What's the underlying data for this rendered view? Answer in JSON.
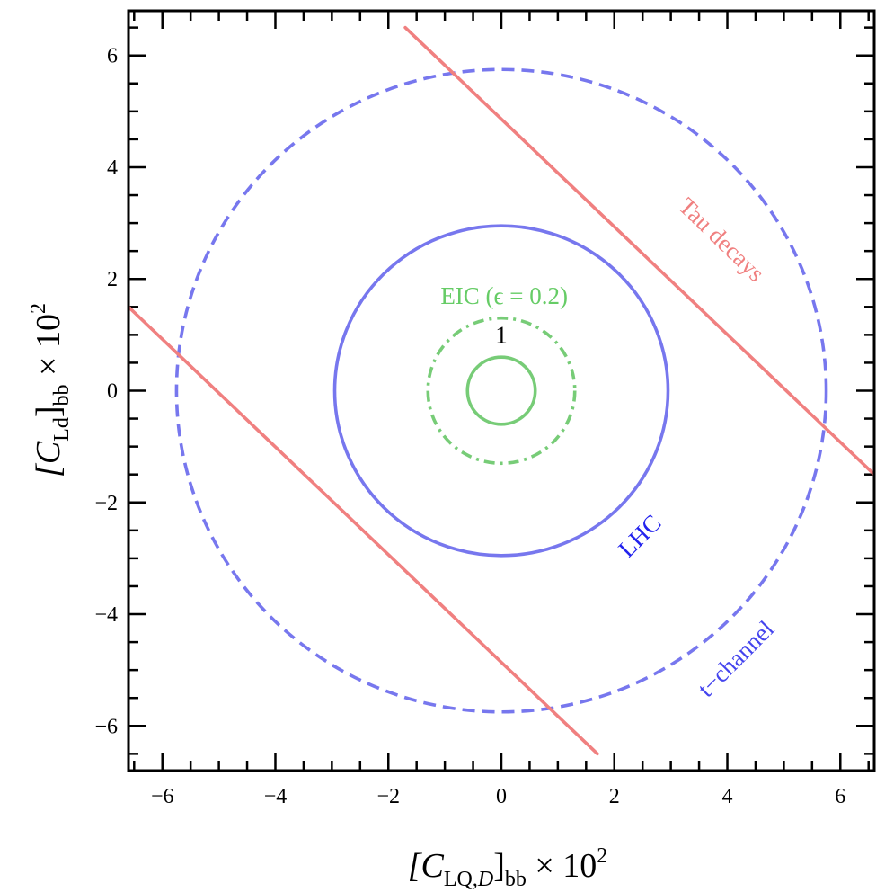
{
  "chart_data": {
    "type": "line",
    "title": "",
    "xlabel": {
      "main": "[C",
      "sub": "LQ,",
      "sub_italic": "D",
      "close": "]",
      "sub2": "bb",
      "tail": " × 10",
      "sup": "2"
    },
    "ylabel": {
      "main": "[C",
      "sub": "Ld",
      "close": "]",
      "sub2": "bb",
      "tail": " × 10",
      "sup": "2"
    },
    "xlim": [
      -6.6,
      6.6
    ],
    "ylim": [
      -6.8,
      6.8
    ],
    "x_ticks": [
      -6,
      -4,
      -2,
      0,
      2,
      4,
      6
    ],
    "y_ticks": [
      -6,
      -4,
      -2,
      0,
      2,
      4,
      6
    ],
    "x_tick_labels": [
      "−6",
      "−4",
      "−2",
      "0",
      "2",
      "4",
      "6"
    ],
    "y_tick_labels": [
      "−6",
      "−4",
      "−2",
      "0",
      "2",
      "4",
      "6"
    ],
    "minor_step": 0.5,
    "grid": false,
    "series": [
      {
        "kind": "circle",
        "center": [
          0,
          0
        ],
        "radius": 0.6,
        "color": "#77cc77",
        "dash": "solid",
        "label": "1",
        "label_at": [
          0,
          0.85
        ]
      },
      {
        "kind": "circle",
        "center": [
          0,
          0
        ],
        "radius": 1.3,
        "color": "#77cc77",
        "dash": "dashdot",
        "label": "EIC (ϵ = 0.2)",
        "label_at": [
          0.05,
          1.55
        ]
      },
      {
        "kind": "circle",
        "center": [
          0,
          0
        ],
        "radius": 2.95,
        "color": "#7777ee",
        "dash": "solid",
        "label": "LHC",
        "label_at": [
          2.55,
          -2.7
        ],
        "label_angle": -45
      },
      {
        "kind": "circle",
        "center": [
          0,
          0
        ],
        "radius": 5.75,
        "color": "#7777ee",
        "dash": "dashed",
        "label": "t−channel",
        "label_at": [
          4.25,
          -4.9
        ],
        "label_angle": -45
      },
      {
        "kind": "line",
        "points": [
          [
            -1.7,
            6.5
          ],
          [
            6.6,
            -1.5
          ]
        ],
        "color": "#f08080",
        "dash": "solid",
        "label": "Tau decays",
        "label_at": [
          3.8,
          2.6
        ],
        "label_angle": 44
      },
      {
        "kind": "line",
        "points": [
          [
            -6.6,
            1.5
          ],
          [
            1.7,
            -6.5
          ]
        ],
        "color": "#f08080",
        "dash": "solid",
        "label": "",
        "label_at": null
      }
    ],
    "label_colors": {
      "LHC": "#2222ee",
      "t−channel": "#4444ee",
      "Tau decays": "#f08080",
      "EIC": "#66cc66"
    }
  }
}
